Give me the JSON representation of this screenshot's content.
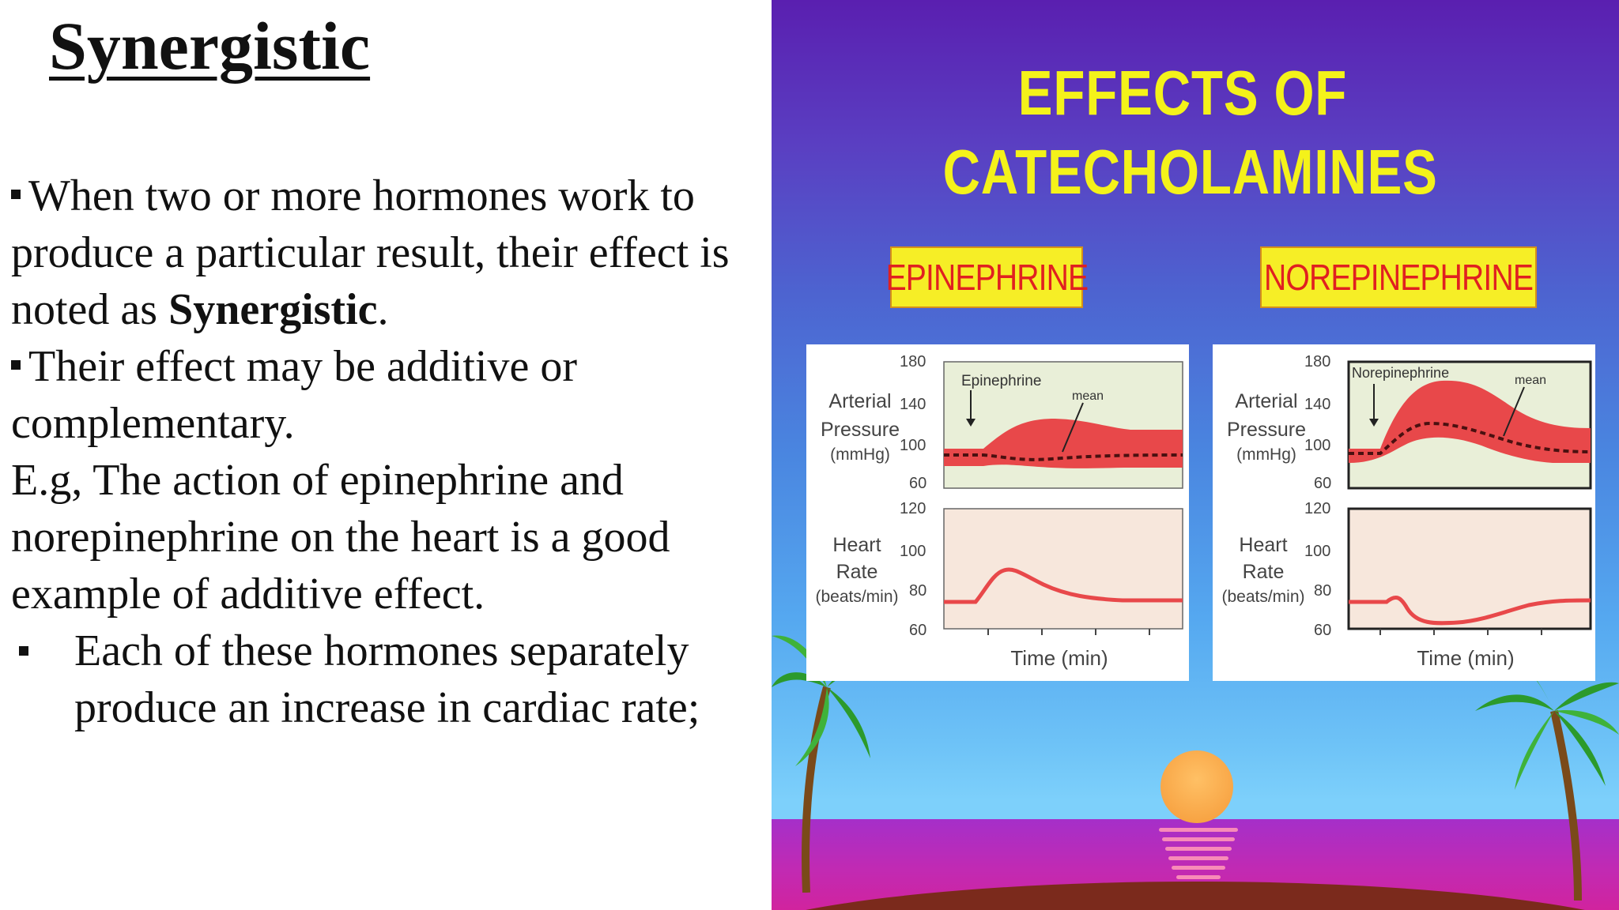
{
  "left": {
    "title": "Synergistic",
    "para1_before": "When two or more hormones work to produce a particular result, their effect is noted as ",
    "para1_bold": "Synergistic",
    "para1_after": ".",
    "para2": "Their effect may be additive or complementary.",
    "para3": "E.g, The action of epinephrine and norepinephrine on the heart is a good example of additive effect.",
    "para4": "Each of these hormones separately produce an increase in cardiac rate;"
  },
  "right": {
    "heading_line1": "EFFECTS OF",
    "heading_line2": "CATECHOLAMINES",
    "label_left": "EPINEPHRINE",
    "label_right": "NOREPINEPHRINE",
    "axis": {
      "arterial_label_1": "Arterial",
      "arterial_label_2": "Pressure",
      "arterial_label_3": "(mmHg)",
      "heart_label_1": "Heart",
      "heart_label_2": "Rate",
      "heart_label_3": "(beats/min)",
      "time_label": "Time (min)",
      "mean_label": "mean",
      "bp_ticks": [
        "180",
        "140",
        "100",
        "60"
      ],
      "hr_ticks": [
        "120",
        "100",
        "80",
        "60"
      ]
    },
    "graph_left_drug": "Epinephrine",
    "graph_right_drug": "Norepinephrine",
    "colors": {
      "yellow_text": "#f4f21a",
      "label_text": "#e02020",
      "curve_red": "#e8484a"
    }
  }
}
